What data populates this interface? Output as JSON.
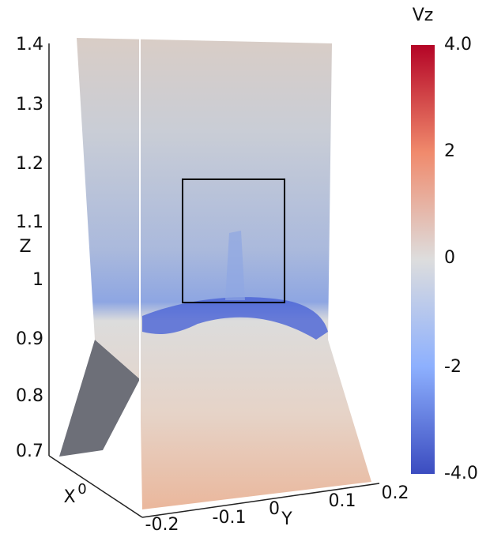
{
  "colorbar": {
    "title": "Vz",
    "labels": [
      "4.0",
      "2",
      "0",
      "-2",
      "-4.0"
    ]
  },
  "z_axis": {
    "title": "Z",
    "ticks": [
      "1.4",
      "1.3",
      "1.2",
      "1.1",
      "1",
      "0.9",
      "0.8",
      "0.7"
    ]
  },
  "x_axis": {
    "title": "X",
    "ticks": [
      "0"
    ]
  },
  "y_axis": {
    "title": "Y",
    "ticks": [
      "-0.2",
      "-0.1",
      "0",
      "0.1",
      "0.2"
    ]
  }
}
